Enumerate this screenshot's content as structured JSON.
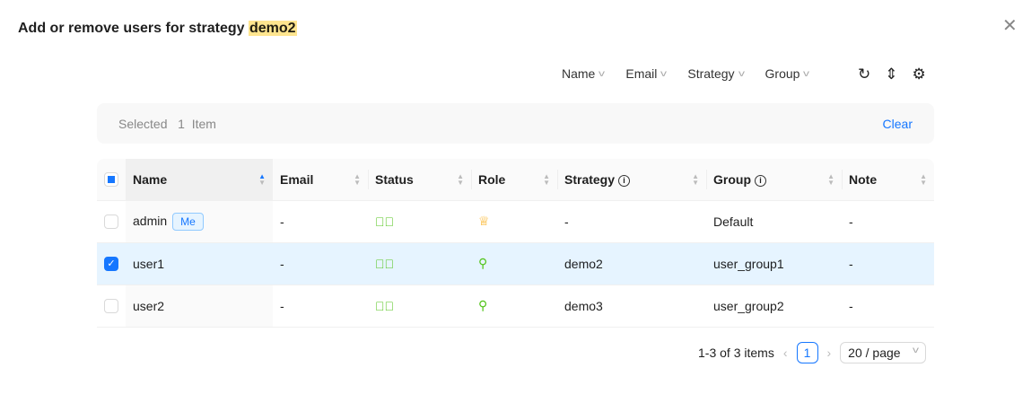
{
  "title": {
    "prefix": "Add or remove users for strategy ",
    "highlight": "demo2"
  },
  "filters": [
    "Name",
    "Email",
    "Strategy",
    "Group"
  ],
  "selection": {
    "label": "Selected",
    "count": "1",
    "unit": "Item",
    "clear": "Clear"
  },
  "columns": [
    "Name",
    "Email",
    "Status",
    "Role",
    "Strategy",
    "Group",
    "Note"
  ],
  "me_badge": "Me",
  "rows": [
    {
      "name": "admin",
      "me": true,
      "email": "-",
      "status": "active",
      "role": "admin",
      "strategy": "-",
      "group": "Default",
      "note": "-",
      "selected": false
    },
    {
      "name": "user1",
      "email": "-",
      "status": "active",
      "role": "user",
      "strategy": "demo2",
      "group": "user_group1",
      "note": "-",
      "selected": true
    },
    {
      "name": "user2",
      "email": "-",
      "status": "active",
      "role": "user",
      "strategy": "demo3",
      "group": "user_group2",
      "note": "-",
      "selected": false
    }
  ],
  "pagination": {
    "summary": "1-3 of 3 items",
    "current": "1",
    "page_size": "20 / page"
  },
  "colors": {
    "accent": "#1677ff",
    "success": "#52c41a",
    "warning": "#faad14",
    "selected_row": "#e6f4ff"
  }
}
